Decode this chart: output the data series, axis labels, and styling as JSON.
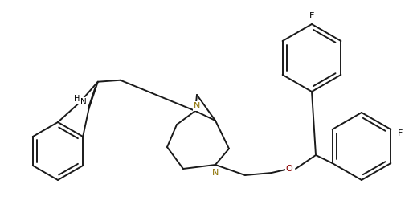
{
  "bg": "#ffffff",
  "lc": "#1a1a1a",
  "lw": 1.4,
  "dbo": 0.012,
  "fs": 7.5,
  "xlim": [
    0,
    514
  ],
  "ylim": [
    0,
    275
  ]
}
